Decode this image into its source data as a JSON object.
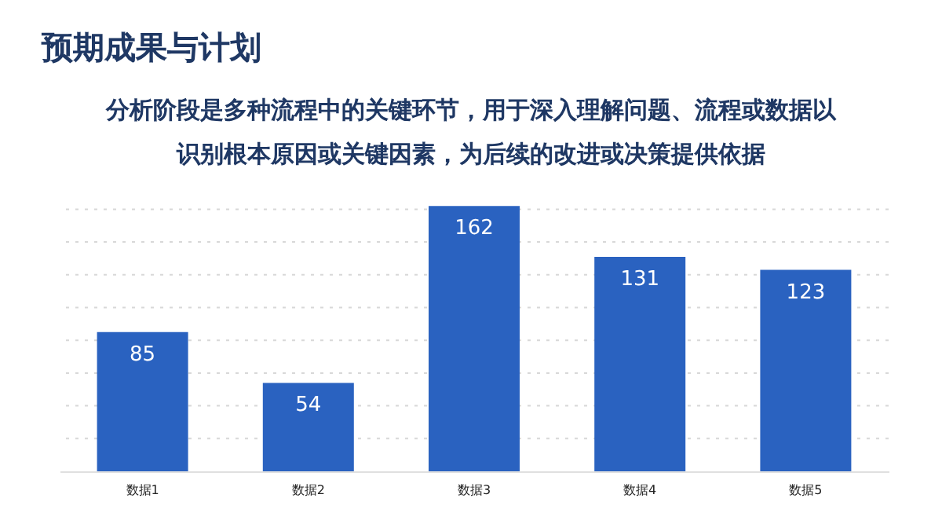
{
  "chart_data": {
    "type": "bar",
    "title": "预期成果与计划",
    "subtitle": "分析阶段是多种流程中的关键环节，用于深入理解问题、流程或数据以识别根本原因或关键因素，为后续的改进或决策提供依据",
    "categories": [
      "数据1",
      "数据2",
      "数据3",
      "数据4",
      "数据5"
    ],
    "values": [
      85,
      54,
      162,
      131,
      123
    ],
    "color": "#2a62c0",
    "ylim": [
      0,
      165
    ],
    "yticks": [
      {
        "value": 0,
        "label": null
      },
      {
        "value": 20,
        "label": null
      },
      {
        "value": 40,
        "label": null
      },
      {
        "value": 60,
        "label": null
      },
      {
        "value": 80,
        "label": null
      },
      {
        "value": 100,
        "label": null
      },
      {
        "value": 120,
        "label": null
      },
      {
        "value": 140,
        "label": null
      },
      {
        "value": 160,
        "label": null
      }
    ],
    "tick_labels": "x",
    "grid": "y",
    "line_style": "dotted",
    "data_labels": true
  }
}
